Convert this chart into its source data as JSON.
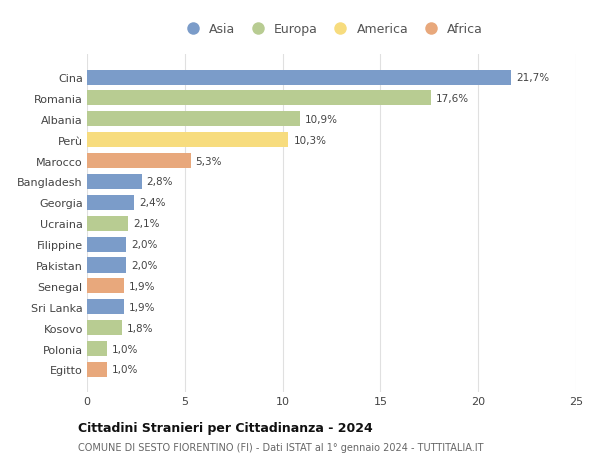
{
  "countries": [
    "Cina",
    "Romania",
    "Albania",
    "Perù",
    "Marocco",
    "Bangladesh",
    "Georgia",
    "Ucraina",
    "Filippine",
    "Pakistan",
    "Senegal",
    "Sri Lanka",
    "Kosovo",
    "Polonia",
    "Egitto"
  ],
  "values": [
    21.7,
    17.6,
    10.9,
    10.3,
    5.3,
    2.8,
    2.4,
    2.1,
    2.0,
    2.0,
    1.9,
    1.9,
    1.8,
    1.0,
    1.0
  ],
  "labels": [
    "21,7%",
    "17,6%",
    "10,9%",
    "10,3%",
    "5,3%",
    "2,8%",
    "2,4%",
    "2,1%",
    "2,0%",
    "2,0%",
    "1,9%",
    "1,9%",
    "1,8%",
    "1,0%",
    "1,0%"
  ],
  "continents": [
    "Asia",
    "Europa",
    "Europa",
    "America",
    "Africa",
    "Asia",
    "Asia",
    "Europa",
    "Asia",
    "Asia",
    "Africa",
    "Asia",
    "Europa",
    "Europa",
    "Africa"
  ],
  "colors": {
    "Asia": "#7b9cc9",
    "Europa": "#b8cc92",
    "America": "#f7dc7e",
    "Africa": "#e8a87c"
  },
  "legend_order": [
    "Asia",
    "Europa",
    "America",
    "Africa"
  ],
  "title": "Cittadini Stranieri per Cittadinanza - 2024",
  "subtitle": "COMUNE DI SESTO FIORENTINO (FI) - Dati ISTAT al 1° gennaio 2024 - TUTTITALIA.IT",
  "xlim": [
    0,
    25
  ],
  "xticks": [
    0,
    5,
    10,
    15,
    20,
    25
  ],
  "background_color": "#ffffff",
  "grid_color": "#e0e0e0",
  "bar_height": 0.72
}
